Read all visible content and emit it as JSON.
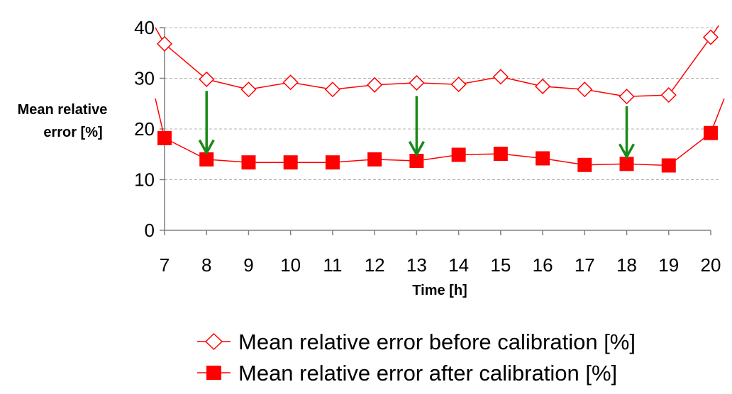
{
  "chart_data": {
    "type": "line",
    "x": [
      7,
      8,
      9,
      10,
      11,
      12,
      13,
      14,
      15,
      16,
      17,
      18,
      19,
      20
    ],
    "xlabel": "Time [h]",
    "ylabel_line1": "Mean relative",
    "ylabel_line2": "error [%]",
    "ylim": [
      0,
      40
    ],
    "yticks": [
      0,
      10,
      20,
      30,
      40
    ],
    "grid": "horizontal-dashed",
    "legend_position": "bottom",
    "series": [
      {
        "name": "Mean relative error before calibration [%]",
        "marker": "open-diamond",
        "color": "#ff0000",
        "values": [
          36.8,
          29.8,
          27.8,
          29.2,
          27.8,
          28.7,
          29.1,
          28.8,
          30.3,
          28.4,
          27.8,
          26.4,
          26.7,
          38.1
        ],
        "lead_in_y": 40,
        "lead_out_y": 42
      },
      {
        "name": "Mean relative error after calibration [%]",
        "marker": "filled-square",
        "color": "#ff0000",
        "values": [
          18.2,
          14.0,
          13.4,
          13.4,
          13.4,
          14.0,
          13.7,
          14.9,
          15.1,
          14.2,
          12.9,
          13.1,
          12.8,
          19.2
        ],
        "lead_in_y": 26,
        "lead_out_y": 26
      }
    ],
    "annotations": [
      {
        "type": "arrow",
        "x": 8,
        "from_y": 27.5,
        "to_y": 15.3,
        "color": "#1a8a1a"
      },
      {
        "type": "arrow",
        "x": 13,
        "from_y": 26.5,
        "to_y": 15.0,
        "color": "#1a8a1a"
      },
      {
        "type": "arrow",
        "x": 18,
        "from_y": 24.5,
        "to_y": 14.5,
        "color": "#1a8a1a"
      }
    ]
  }
}
